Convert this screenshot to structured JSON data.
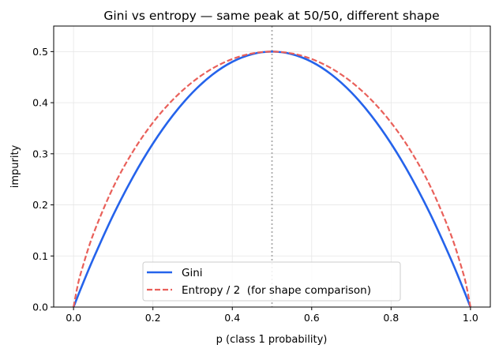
{
  "chart_data": {
    "type": "line",
    "title": "Gini vs entropy — same peak at 50/50, different shape",
    "xlabel": "p  (class 1 probability)",
    "ylabel": "impurity",
    "xlim": [
      -0.05,
      1.05
    ],
    "ylim": [
      0,
      0.55
    ],
    "xticks": [
      0.0,
      0.2,
      0.4,
      0.6,
      0.8,
      1.0
    ],
    "xtick_labels": [
      "0.0",
      "0.2",
      "0.4",
      "0.6",
      "0.8",
      "1.0"
    ],
    "yticks": [
      0.0,
      0.1,
      0.2,
      0.3,
      0.4,
      0.5
    ],
    "ytick_labels": [
      "0.0",
      "0.1",
      "0.2",
      "0.3",
      "0.4",
      "0.5"
    ],
    "grid": true,
    "legend_placement": "lower-center",
    "vline": {
      "x": 0.5,
      "style": "dotted",
      "color": "#aaaaaa"
    },
    "x": [
      0,
      0.01,
      0.02,
      0.05,
      0.1,
      0.15,
      0.2,
      0.25,
      0.3,
      0.35,
      0.4,
      0.45,
      0.5,
      0.55,
      0.6,
      0.65,
      0.7,
      0.75,
      0.8,
      0.85,
      0.9,
      0.95,
      0.98,
      0.99,
      1
    ],
    "series": [
      {
        "name": "Gini",
        "color": "#2563eb",
        "style": "solid",
        "values": [
          0,
          0.0198,
          0.0392,
          0.095,
          0.18,
          0.255,
          0.32,
          0.375,
          0.42,
          0.455,
          0.48,
          0.495,
          0.5,
          0.495,
          0.48,
          0.455,
          0.42,
          0.375,
          0.32,
          0.255,
          0.18,
          0.095,
          0.0392,
          0.0198,
          0
        ]
      },
      {
        "name": "Entropy / 2  (for shape comparison)",
        "color": "#e9605a",
        "style": "dashed",
        "values": [
          0,
          0.0404,
          0.0707,
          0.1432,
          0.2345,
          0.3049,
          0.361,
          0.4056,
          0.4406,
          0.467,
          0.4855,
          0.4964,
          0.5,
          0.4964,
          0.4855,
          0.467,
          0.4406,
          0.4056,
          0.361,
          0.3049,
          0.2345,
          0.1432,
          0.0707,
          0.0404,
          0
        ]
      }
    ]
  }
}
